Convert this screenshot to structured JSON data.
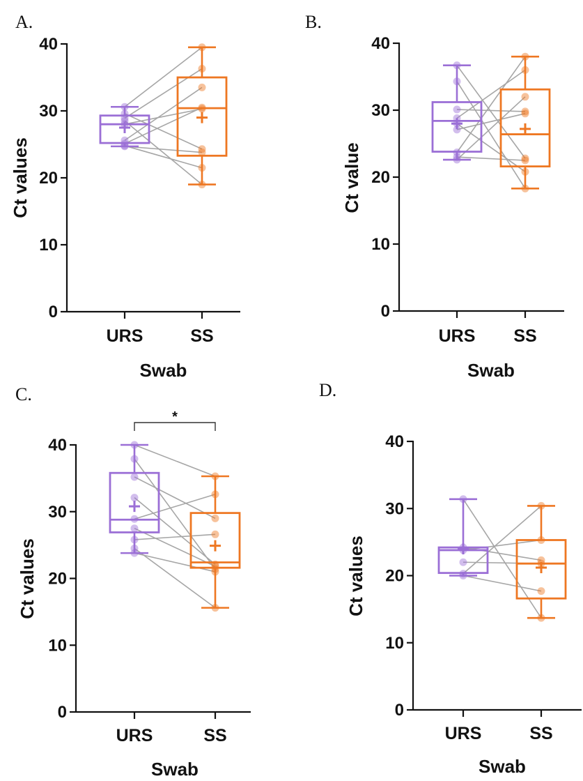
{
  "colors": {
    "urs": "#9B6FD6",
    "ss": "#EE7722",
    "pair_line": "#A6A6A6",
    "axis": "#111111"
  },
  "chart_data": [
    {
      "type": "box",
      "panel": "A.",
      "xlabel": "Swab",
      "ylabel": "Ct values",
      "ylim": [
        0,
        40
      ],
      "yticks": [
        0,
        10,
        20,
        30,
        40
      ],
      "categories": [
        "URS",
        "SS"
      ],
      "boxes": [
        {
          "name": "URS",
          "min": 24.7,
          "q1": 25.2,
          "median": 28.0,
          "q3": 29.3,
          "max": 30.6,
          "mean": 27.5,
          "points": [
            30.6,
            29.6,
            28.9,
            28.5,
            28.0,
            25.6,
            25.1,
            24.8,
            24.7
          ]
        },
        {
          "name": "SS",
          "min": 19.0,
          "q1": 23.3,
          "median": 30.4,
          "q3": 35.0,
          "max": 39.5,
          "mean": 29.0,
          "points": [
            39.5,
            36.3,
            33.5,
            30.5,
            30.3,
            24.3,
            23.8,
            21.5,
            19.0
          ]
        }
      ],
      "pairs": [
        [
          30.6,
          39.5
        ],
        [
          29.6,
          24.3
        ],
        [
          28.9,
          36.3
        ],
        [
          28.5,
          19.0
        ],
        [
          28.0,
          30.3
        ],
        [
          25.6,
          33.5
        ],
        [
          25.1,
          30.5
        ],
        [
          24.8,
          21.5
        ],
        [
          24.7,
          23.8
        ]
      ],
      "significance": ""
    },
    {
      "type": "box",
      "panel": "B.",
      "xlabel": "Swab",
      "ylabel": "Ct value",
      "ylim": [
        0,
        40
      ],
      "yticks": [
        0,
        10,
        20,
        30,
        40
      ],
      "categories": [
        "URS",
        "SS"
      ],
      "boxes": [
        {
          "name": "URS",
          "min": 22.6,
          "q1": 23.8,
          "median": 28.4,
          "q3": 31.2,
          "max": 36.7,
          "mean": 28.0,
          "points": [
            36.7,
            34.3,
            30.1,
            28.8,
            28.0,
            27.1,
            23.7,
            23.0,
            22.6
          ]
        },
        {
          "name": "SS",
          "min": 18.3,
          "q1": 21.6,
          "median": 26.4,
          "q3": 33.1,
          "max": 38.0,
          "mean": 27.2,
          "points": [
            38.0,
            36.0,
            32.0,
            29.8,
            29.5,
            22.8,
            22.5,
            20.8,
            18.3
          ]
        }
      ],
      "pairs": [
        [
          36.7,
          22.8
        ],
        [
          34.3,
          18.3
        ],
        [
          30.1,
          29.8
        ],
        [
          28.8,
          36.0
        ],
        [
          28.0,
          20.8
        ],
        [
          27.1,
          29.5
        ],
        [
          23.7,
          38.0
        ],
        [
          23.0,
          22.5
        ],
        [
          22.6,
          32.0
        ]
      ],
      "significance": ""
    },
    {
      "type": "box",
      "panel": "C.",
      "xlabel": "Swab",
      "ylabel": "Ct values",
      "ylim": [
        0,
        40
      ],
      "yticks": [
        0,
        10,
        20,
        30,
        40
      ],
      "categories": [
        "URS",
        "SS"
      ],
      "boxes": [
        {
          "name": "URS",
          "min": 23.8,
          "q1": 26.9,
          "median": 28.8,
          "q3": 35.8,
          "max": 40.0,
          "mean": 30.8,
          "points": [
            40.0,
            37.9,
            35.2,
            32.1,
            28.9,
            27.5,
            25.8,
            24.5,
            23.8
          ]
        },
        {
          "name": "SS",
          "min": 15.6,
          "q1": 21.6,
          "median": 22.4,
          "q3": 29.8,
          "max": 35.3,
          "mean": 24.9,
          "points": [
            35.3,
            32.6,
            29.0,
            26.6,
            22.1,
            21.8,
            21.4,
            21.0,
            15.6
          ]
        }
      ],
      "pairs": [
        [
          40.0,
          35.3
        ],
        [
          37.9,
          21.4
        ],
        [
          35.2,
          29.0
        ],
        [
          32.1,
          22.1
        ],
        [
          28.9,
          32.6
        ],
        [
          27.5,
          21.8
        ],
        [
          25.8,
          26.6
        ],
        [
          24.5,
          15.6
        ],
        [
          23.8,
          21.0
        ]
      ],
      "significance": "*"
    },
    {
      "type": "box",
      "panel": "D.",
      "xlabel": "Swab",
      "ylabel": "Ct values",
      "ylim": [
        0,
        40
      ],
      "yticks": [
        0,
        10,
        20,
        30,
        40
      ],
      "categories": [
        "URS",
        "SS"
      ],
      "boxes": [
        {
          "name": "URS",
          "min": 20.0,
          "q1": 20.4,
          "median": 23.8,
          "q3": 24.2,
          "max": 31.4,
          "mean": 24.0,
          "points": [
            31.4,
            24.2,
            23.8,
            22.0,
            20.3,
            20.0
          ]
        },
        {
          "name": "SS",
          "min": 13.7,
          "q1": 16.6,
          "median": 21.8,
          "q3": 25.3,
          "max": 30.4,
          "mean": 21.2,
          "points": [
            30.4,
            25.3,
            22.3,
            21.8,
            17.7,
            13.7
          ]
        }
      ],
      "pairs": [
        [
          31.4,
          13.7
        ],
        [
          24.2,
          22.3
        ],
        [
          23.8,
          25.3
        ],
        [
          22.0,
          21.8
        ],
        [
          20.3,
          30.4
        ],
        [
          20.0,
          17.7
        ]
      ],
      "significance": ""
    }
  ]
}
